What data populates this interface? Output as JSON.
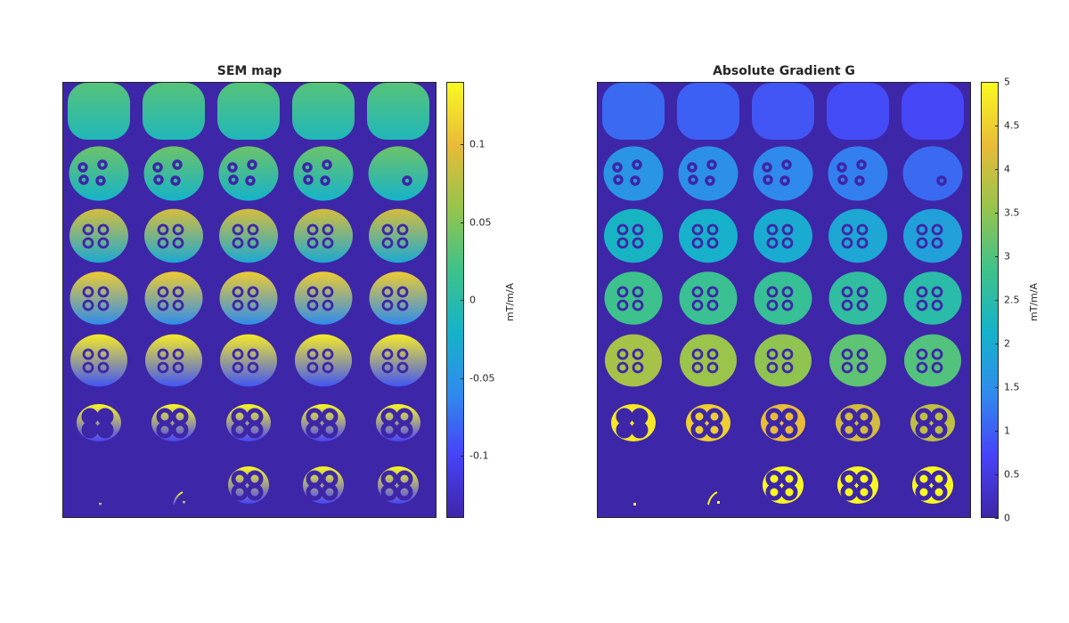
{
  "colors": {
    "background_inside": "#3e26a8",
    "parula_stops": [
      "#3e26a8",
      "#4743f8",
      "#2f8ced",
      "#15b3c9",
      "#40c288",
      "#98c44b",
      "#e9bb38",
      "#f9f921"
    ]
  },
  "chart_data": [
    {
      "type": "heatmap",
      "title": "SEM map",
      "colorbar_label": "mT/m/A",
      "colorbar_range": [
        -0.14,
        0.14
      ],
      "colorbar_ticks": [
        {
          "value": 0.1,
          "label": "0.1"
        },
        {
          "value": 0.05,
          "label": "0.05"
        },
        {
          "value": 0,
          "label": "0"
        },
        {
          "value": -0.05,
          "label": "-0.05"
        },
        {
          "value": -0.1,
          "label": "-0.1"
        }
      ],
      "grid": {
        "rows": 7,
        "cols": 5
      },
      "colormap": "parula",
      "rows": [
        {
          "phantom": "full",
          "holes": "none",
          "value_top": 0.03,
          "value_bottom": -0.01
        },
        {
          "phantom": "round",
          "holes": "small",
          "value_top": 0.04,
          "value_bottom": -0.02
        },
        {
          "phantom": "round",
          "holes": "rings",
          "value_top": 0.09,
          "value_bottom": -0.03
        },
        {
          "phantom": "round",
          "holes": "rings",
          "value_top": 0.11,
          "value_bottom": -0.06
        },
        {
          "phantom": "round",
          "holes": "rings",
          "value_top": 0.13,
          "value_bottom": -0.09
        },
        {
          "phantom": "round",
          "holes": "large",
          "value_top": 0.14,
          "value_bottom": -0.1
        },
        {
          "phantom": "mixed",
          "holes": "large",
          "value_top": 0.14,
          "value_bottom": -0.1
        }
      ]
    },
    {
      "type": "heatmap",
      "title": "Absolute Gradient G",
      "colorbar_label": "mT/m/A",
      "colorbar_range": [
        0,
        5
      ],
      "colorbar_ticks": [
        {
          "value": 5,
          "label": "5"
        },
        {
          "value": 4.5,
          "label": "4.5"
        },
        {
          "value": 4,
          "label": "4"
        },
        {
          "value": 3.5,
          "label": "3.5"
        },
        {
          "value": 3,
          "label": "3"
        },
        {
          "value": 2.5,
          "label": "2.5"
        },
        {
          "value": 2,
          "label": "2"
        },
        {
          "value": 1.5,
          "label": "1.5"
        },
        {
          "value": 1,
          "label": "1"
        },
        {
          "value": 0.5,
          "label": "0.5"
        },
        {
          "value": 0,
          "label": "0"
        }
      ],
      "grid": {
        "rows": 7,
        "cols": 5
      },
      "colormap": "parula",
      "rows": [
        {
          "phantom": "full",
          "holes": "none",
          "values": [
            1.1,
            1.0,
            0.9,
            0.8,
            0.75
          ]
        },
        {
          "phantom": "round",
          "holes": "small",
          "values": [
            1.6,
            1.5,
            1.4,
            1.3,
            1.1
          ]
        },
        {
          "phantom": "round",
          "holes": "rings",
          "values": [
            2.2,
            2.1,
            2.0,
            1.9,
            1.8
          ]
        },
        {
          "phantom": "round",
          "holes": "rings",
          "values": [
            2.8,
            2.75,
            2.7,
            2.6,
            2.5
          ]
        },
        {
          "phantom": "round",
          "holes": "rings",
          "values": [
            3.7,
            3.6,
            3.5,
            3.1,
            3.0
          ]
        },
        {
          "phantom": "round",
          "holes": "large",
          "values": [
            4.8,
            4.5,
            4.3,
            4.1,
            3.9
          ]
        },
        {
          "phantom": "mixed",
          "holes": "large",
          "values": [
            5.0,
            5.0,
            5.0,
            5.0,
            5.0
          ]
        }
      ]
    }
  ]
}
